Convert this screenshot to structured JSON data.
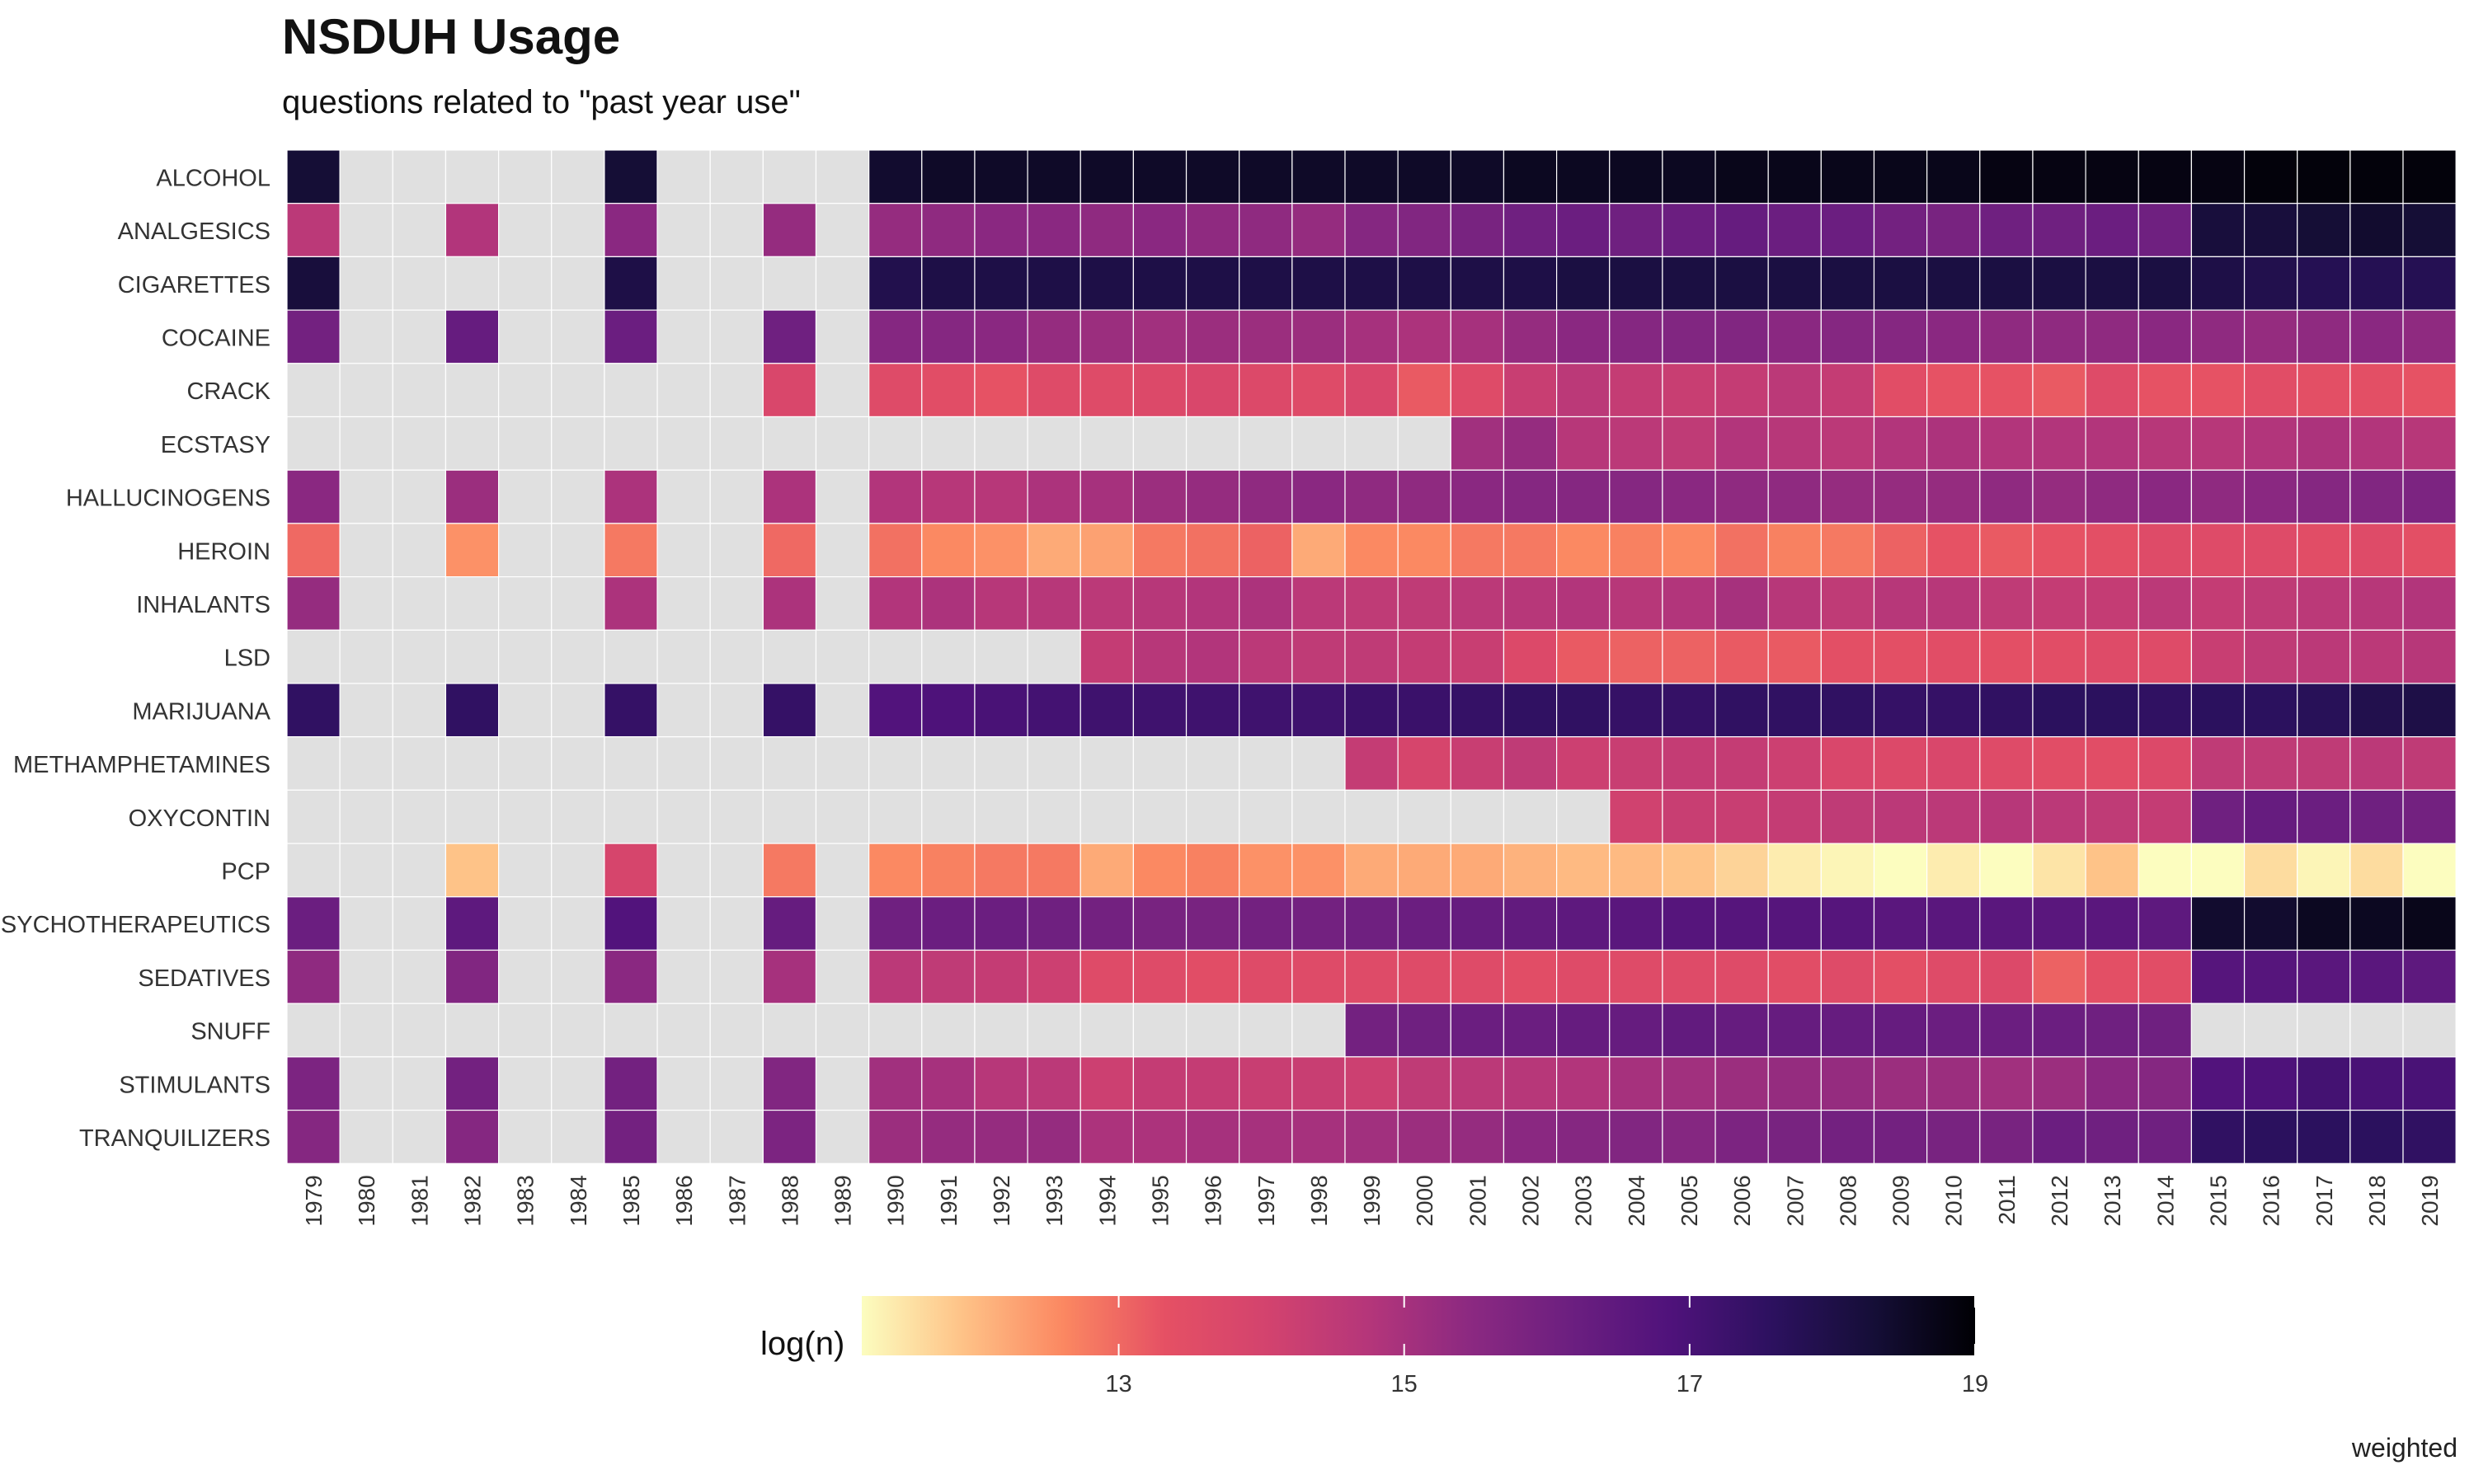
{
  "chart_data": {
    "type": "heatmap",
    "title": "NSDUH Usage",
    "subtitle": "questions related to \"past year use\"",
    "caption": "weighted",
    "x": [
      1979,
      1980,
      1981,
      1982,
      1983,
      1984,
      1985,
      1986,
      1987,
      1988,
      1989,
      1990,
      1991,
      1992,
      1993,
      1994,
      1995,
      1996,
      1997,
      1998,
      1999,
      2000,
      2001,
      2002,
      2003,
      2004,
      2005,
      2006,
      2007,
      2008,
      2009,
      2010,
      2011,
      2012,
      2013,
      2014,
      2015,
      2016,
      2017,
      2018,
      2019
    ],
    "y": [
      "ALCOHOL",
      "ANALGESICS",
      "CIGARETTES",
      "COCAINE",
      "CRACK",
      "ECSTASY",
      "HALLUCINOGENS",
      "HEROIN",
      "INHALANTS",
      "LSD",
      "MARIJUANA",
      "METHAMPHETAMINES",
      "OXYCONTIN",
      "PCP",
      "PSYCHOTHERAPEUTICS",
      "SEDATIVES",
      "SNUFF",
      "STIMULANTS",
      "TRANQUILIZERS"
    ],
    "color_scale": {
      "name": "magma",
      "label": "log(n)",
      "domain": [
        11.2,
        19
      ],
      "ticks": [
        13,
        15,
        17,
        19
      ],
      "missing_color": "#e0e0e0",
      "stops": [
        "#fcfdbf",
        "#fec287",
        "#fb8761",
        "#e55064",
        "#d3436e",
        "#b5367a",
        "#8c2981",
        "#6c1f80",
        "#4f127b",
        "#2c115f",
        "#150e37",
        "#000004"
      ]
    },
    "survey_years": {
      "early": [
        1979,
        1982,
        1985,
        1988
      ],
      "annual_start": 1990
    },
    "rows": {
      "ALCOHOL": {
        "early": [
          18.3,
          null,
          18.3,
          null
        ],
        "annual": [
          18.4,
          18.5,
          18.5,
          18.5,
          18.5,
          18.5,
          18.5,
          18.5,
          18.5,
          18.5,
          18.5,
          18.5,
          18.6,
          18.6,
          18.6,
          18.6,
          18.7,
          18.7,
          18.7,
          18.7,
          18.7,
          18.8,
          18.8,
          18.8,
          18.8,
          18.8,
          18.9,
          18.9,
          18.9,
          18.9
        ]
      },
      "ANALGESICS": {
        "early": [
          14.6,
          14.8,
          15.5,
          15.3
        ],
        "annual": [
          15.3,
          15.4,
          15.5,
          15.5,
          15.4,
          15.5,
          15.4,
          15.4,
          15.3,
          15.6,
          15.7,
          15.9,
          16.1,
          16.2,
          16.1,
          16.2,
          16.3,
          16.2,
          16.2,
          16.0,
          15.9,
          16.1,
          16.1,
          16.2,
          16.1,
          18.2,
          18.2,
          18.3,
          18.4,
          18.3
        ]
      },
      "CIGARETTES": {
        "early": [
          18.2,
          null,
          18.0,
          null
        ],
        "annual": [
          17.9,
          18.0,
          18.0,
          18.0,
          18.0,
          18.0,
          18.0,
          18.0,
          18.0,
          18.0,
          18.0,
          18.0,
          18.0,
          18.1,
          18.1,
          18.1,
          18.1,
          18.1,
          18.1,
          18.1,
          18.1,
          18.1,
          18.1,
          18.1,
          18.1,
          18.0,
          17.9,
          17.8,
          17.8,
          17.8
        ]
      },
      "COCAINE": {
        "early": [
          16.0,
          16.3,
          16.2,
          16.1
        ],
        "annual": [
          15.6,
          15.6,
          15.5,
          15.3,
          15.2,
          15.1,
          15.2,
          15.2,
          15.2,
          15.0,
          14.9,
          15.0,
          15.3,
          15.5,
          15.6,
          15.7,
          15.7,
          15.5,
          15.6,
          15.6,
          15.5,
          15.4,
          15.4,
          15.4,
          15.5,
          15.4,
          15.3,
          15.4,
          15.5,
          15.4
        ]
      },
      "CRACK": {
        "early": [
          null,
          null,
          null,
          13.8
        ],
        "annual": [
          13.6,
          13.5,
          13.3,
          13.6,
          13.6,
          13.7,
          13.8,
          13.7,
          13.6,
          13.8,
          13.2,
          13.6,
          14.3,
          14.6,
          14.4,
          14.3,
          14.4,
          14.6,
          14.4,
          13.5,
          13.3,
          13.3,
          13.2,
          13.6,
          13.3,
          13.3,
          13.5,
          13.4,
          13.4,
          13.3
        ]
      },
      "ECSTASY": {
        "early": [
          null,
          null,
          null,
          null
        ],
        "annual": [
          null,
          null,
          null,
          null,
          null,
          null,
          null,
          null,
          null,
          null,
          null,
          15.1,
          15.3,
          14.7,
          14.6,
          14.5,
          14.8,
          14.7,
          14.6,
          14.8,
          14.9,
          14.8,
          14.8,
          14.8,
          14.7,
          14.7,
          14.8,
          14.9,
          14.8,
          14.7
        ]
      },
      "HALLUCINOGENS": {
        "early": [
          15.5,
          15.2,
          14.9,
          14.9
        ],
        "annual": [
          14.8,
          14.7,
          14.7,
          14.9,
          15.0,
          15.2,
          15.3,
          15.4,
          15.5,
          15.4,
          15.4,
          15.5,
          15.6,
          15.6,
          15.6,
          15.5,
          15.4,
          15.4,
          15.3,
          15.3,
          15.3,
          15.4,
          15.3,
          15.4,
          15.5,
          15.4,
          15.5,
          15.6,
          15.7,
          15.8
        ]
      },
      "HEROIN": {
        "early": [
          13.0,
          12.5,
          12.8,
          13.0
        ],
        "annual": [
          12.9,
          12.6,
          12.5,
          12.2,
          12.3,
          12.8,
          12.9,
          13.1,
          12.2,
          12.6,
          12.6,
          12.8,
          12.8,
          12.6,
          12.7,
          12.6,
          12.9,
          12.7,
          12.8,
          13.1,
          13.3,
          13.2,
          13.3,
          13.4,
          13.6,
          13.6,
          13.6,
          13.5,
          13.6,
          13.4
        ]
      },
      "INHALANTS": {
        "early": [
          15.3,
          null,
          14.9,
          14.9
        ],
        "annual": [
          14.8,
          14.9,
          14.7,
          14.7,
          14.6,
          14.7,
          14.8,
          14.9,
          14.6,
          14.5,
          14.5,
          14.6,
          14.7,
          14.8,
          14.7,
          14.8,
          15.0,
          14.7,
          14.5,
          14.7,
          14.7,
          14.5,
          14.4,
          14.4,
          14.6,
          14.4,
          14.5,
          14.6,
          14.7,
          14.8
        ]
      },
      "LSD": {
        "early": [
          null,
          null,
          null,
          null
        ],
        "annual": [
          null,
          null,
          null,
          null,
          14.4,
          14.7,
          14.8,
          14.6,
          14.5,
          14.5,
          14.4,
          14.3,
          13.7,
          13.2,
          13.1,
          13.1,
          13.2,
          13.2,
          13.4,
          13.4,
          13.5,
          13.4,
          13.5,
          13.6,
          13.6,
          14.3,
          14.5,
          14.6,
          14.6,
          14.7
        ]
      },
      "MARIJUANA": {
        "early": [
          17.5,
          17.5,
          17.4,
          17.4
        ],
        "annual": [
          16.8,
          16.9,
          17.0,
          17.1,
          17.2,
          17.2,
          17.2,
          17.2,
          17.2,
          17.3,
          17.3,
          17.4,
          17.5,
          17.5,
          17.4,
          17.4,
          17.5,
          17.5,
          17.5,
          17.4,
          17.4,
          17.5,
          17.6,
          17.6,
          17.5,
          17.6,
          17.6,
          17.7,
          17.9,
          18.0
        ]
      },
      "METHAMPHETAMINES": {
        "early": [
          null,
          null,
          null,
          null
        ],
        "annual": [
          null,
          null,
          null,
          null,
          null,
          null,
          null,
          null,
          null,
          14.4,
          13.9,
          14.3,
          14.5,
          14.2,
          14.3,
          14.4,
          14.4,
          14.2,
          13.8,
          13.7,
          13.8,
          13.6,
          13.5,
          13.5,
          13.7,
          14.5,
          14.5,
          14.5,
          14.6,
          14.5
        ]
      },
      "OXYCONTIN": {
        "early": [
          null,
          null,
          null,
          null
        ],
        "annual": [
          null,
          null,
          null,
          null,
          null,
          null,
          null,
          null,
          null,
          null,
          null,
          null,
          null,
          null,
          14.1,
          14.3,
          14.3,
          14.4,
          14.5,
          14.6,
          14.6,
          14.7,
          14.6,
          14.5,
          14.4,
          16.1,
          16.3,
          16.2,
          16.1,
          16.0
        ]
      },
      "PCP": {
        "early": [
          null,
          11.9,
          13.9,
          12.8
        ],
        "annual": [
          12.6,
          12.7,
          12.8,
          12.8,
          12.2,
          12.6,
          12.7,
          12.5,
          12.5,
          12.2,
          12.2,
          12.2,
          12.1,
          12.0,
          12.0,
          11.9,
          11.7,
          11.4,
          11.3,
          11.2,
          11.4,
          11.2,
          11.5,
          11.9,
          10.9,
          11.2,
          11.6,
          11.3,
          11.6,
          10.9
        ]
      },
      "PSYCHOTHERAPEUTICS": {
        "early": [
          16.2,
          16.5,
          16.8,
          16.3
        ],
        "annual": [
          16.1,
          16.2,
          16.2,
          16.1,
          16.0,
          15.9,
          15.9,
          16.0,
          16.0,
          16.1,
          16.2,
          16.3,
          16.4,
          16.5,
          16.6,
          16.7,
          16.7,
          16.7,
          16.7,
          16.6,
          16.6,
          16.6,
          16.6,
          16.6,
          16.5,
          18.4,
          18.4,
          18.6,
          18.6,
          18.7
        ]
      },
      "SEDATIVES": {
        "early": [
          15.4,
          15.7,
          15.5,
          15.0
        ],
        "annual": [
          14.6,
          14.5,
          14.4,
          14.2,
          13.6,
          13.6,
          13.5,
          13.6,
          13.6,
          13.6,
          13.6,
          13.6,
          13.5,
          13.6,
          13.6,
          13.6,
          13.6,
          13.5,
          13.6,
          13.4,
          13.6,
          13.7,
          13.1,
          13.4,
          13.5,
          16.7,
          16.7,
          16.6,
          16.6,
          16.5
        ]
      },
      "SNUFF": {
        "early": [
          null,
          null,
          null,
          null
        ],
        "annual": [
          null,
          null,
          null,
          null,
          null,
          null,
          null,
          null,
          null,
          16.0,
          16.1,
          16.2,
          16.2,
          16.3,
          16.3,
          16.4,
          16.3,
          16.3,
          16.3,
          16.3,
          16.2,
          16.2,
          16.2,
          16.1,
          16.1,
          null,
          null,
          null,
          null,
          null
        ]
      },
      "STIMULANTS": {
        "early": [
          15.8,
          16.0,
          16.0,
          15.7
        ],
        "annual": [
          15.1,
          15.0,
          14.7,
          14.6,
          14.2,
          14.4,
          14.4,
          14.3,
          14.3,
          14.2,
          14.5,
          14.6,
          14.7,
          14.8,
          15.0,
          15.1,
          15.2,
          15.3,
          15.3,
          15.2,
          15.2,
          15.1,
          15.2,
          15.5,
          15.6,
          16.8,
          16.9,
          17.1,
          17.0,
          17.0
        ]
      },
      "TRANQUILIZERS": {
        "early": [
          15.6,
          15.6,
          16.0,
          15.8
        ],
        "annual": [
          15.2,
          15.3,
          15.3,
          15.3,
          14.9,
          14.9,
          15.0,
          15.0,
          15.0,
          15.1,
          15.2,
          15.3,
          15.5,
          15.6,
          15.7,
          15.6,
          15.8,
          15.9,
          16.0,
          16.0,
          15.9,
          15.9,
          16.2,
          16.1,
          16.1,
          17.5,
          17.6,
          17.6,
          17.6,
          17.5
        ]
      }
    }
  }
}
